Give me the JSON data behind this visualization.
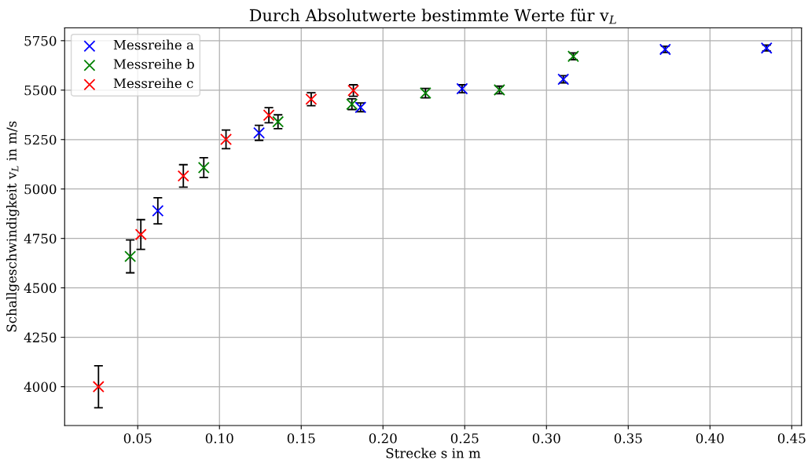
{
  "chart_data": {
    "type": "scatter",
    "title": "Durch Absolutwerte bestimmte Werte für v$_{L}$",
    "xlabel": "Strecke s in m",
    "ylabel": "Schallgeschwindigkeit v$_{L}$ in m/s",
    "series": [
      {
        "name": "Messreihe a",
        "color": "#0000ff",
        "x": [
          0.0623,
          0.1242,
          0.1863,
          0.2484,
          0.3103,
          0.3726,
          0.4346
        ],
        "values": [
          4890,
          5284,
          5413,
          5507,
          5555,
          5706,
          5713
        ],
        "errors": [
          66,
          38,
          22,
          20,
          18,
          16,
          15
        ]
      },
      {
        "name": "Messreihe b",
        "color": "#008000",
        "x": [
          0.0454,
          0.0904,
          0.1358,
          0.181,
          0.226,
          0.2712,
          0.3164
        ],
        "values": [
          4659,
          5108,
          5340,
          5429,
          5485,
          5501,
          5671
        ],
        "errors": [
          83,
          50,
          35,
          27,
          24,
          19,
          17
        ]
      },
      {
        "name": "Messreihe c",
        "color": "#ff0000",
        "x": [
          0.026,
          0.0519,
          0.0779,
          0.104,
          0.1302,
          0.1561,
          0.1819
        ],
        "values": [
          4000,
          4770,
          5066,
          5251,
          5373,
          5454,
          5498
        ],
        "errors": [
          106,
          75,
          57,
          47,
          38,
          33,
          29
        ]
      }
    ],
    "xlim": [
      0.0053,
      0.456
    ],
    "ylim": [
      3804,
      5815
    ],
    "xticks": [
      {
        "value": 0.05,
        "label": "0.05"
      },
      {
        "value": 0.1,
        "label": "0.10"
      },
      {
        "value": 0.15,
        "label": "0.15"
      },
      {
        "value": 0.2,
        "label": "0.20"
      },
      {
        "value": 0.25,
        "label": "0.25"
      },
      {
        "value": 0.3,
        "label": "0.30"
      },
      {
        "value": 0.35,
        "label": "0.35"
      },
      {
        "value": 0.4,
        "label": "0.40"
      },
      {
        "value": 0.45,
        "label": "0.45"
      }
    ],
    "yticks": [
      4000,
      4250,
      4500,
      4750,
      5000,
      5250,
      5500,
      5750
    ],
    "grid": true,
    "legend": "top left",
    "marker": "cross"
  }
}
